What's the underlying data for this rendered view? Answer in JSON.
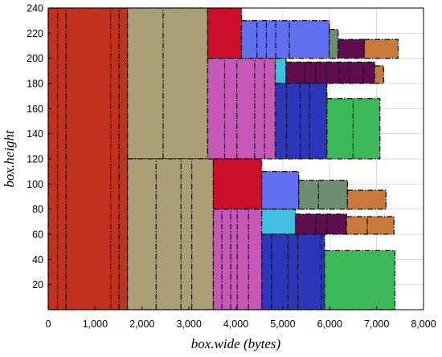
{
  "chart_data": {
    "type": "treemap-packing",
    "xlabel": "box.wide (bytes)",
    "ylabel": "box.height",
    "xlim": [
      0,
      8000
    ],
    "ylim": [
      0,
      240
    ],
    "xticks": [
      0,
      1000,
      2000,
      3000,
      4000,
      5000,
      6000,
      7000,
      8000
    ],
    "xtick_labels": [
      "0",
      "1,000",
      "2,000",
      "3,000",
      "4,000",
      "5,000",
      "6,000",
      "7,000",
      "8,000"
    ],
    "yticks": [
      20,
      40,
      60,
      80,
      100,
      120,
      140,
      160,
      180,
      200,
      220,
      240
    ],
    "ytick_labels": [
      "20",
      "40",
      "60",
      "80",
      "100",
      "120",
      "140",
      "160",
      "180",
      "200",
      "220",
      "240"
    ],
    "grid": true,
    "boxes": [
      {
        "x0": 0,
        "x1": 1690,
        "y0": 0,
        "y1": 240,
        "color": "#c0321e"
      },
      {
        "x0": 1690,
        "x1": 3400,
        "y0": 120,
        "y1": 240,
        "color": "#ac9e74"
      },
      {
        "x0": 1690,
        "x1": 3520,
        "y0": 0,
        "y1": 120,
        "color": "#ac9e74"
      },
      {
        "x0": 3400,
        "x1": 4120,
        "y0": 200,
        "y1": 240,
        "color": "#cc0e2a"
      },
      {
        "x0": 4120,
        "x1": 5990,
        "y0": 200,
        "y1": 230,
        "color": "#6170f0"
      },
      {
        "x0": 5990,
        "x1": 6180,
        "y0": 200,
        "y1": 223,
        "color": "#6e8e72"
      },
      {
        "x0": 6180,
        "x1": 6740,
        "y0": 200,
        "y1": 215,
        "color": "#5e0e4e"
      },
      {
        "x0": 6740,
        "x1": 7460,
        "y0": 200,
        "y1": 215,
        "color": "#c97a3a"
      },
      {
        "x0": 3400,
        "x1": 4840,
        "y0": 120,
        "y1": 200,
        "color": "#c658b8"
      },
      {
        "x0": 4840,
        "x1": 5070,
        "y0": 180,
        "y1": 200,
        "color": "#40c0de"
      },
      {
        "x0": 5070,
        "x1": 6960,
        "y0": 180,
        "y1": 197,
        "color": "#5e0e4e"
      },
      {
        "x0": 6960,
        "x1": 7150,
        "y0": 180,
        "y1": 194,
        "color": "#c97a3a"
      },
      {
        "x0": 4840,
        "x1": 5940,
        "y0": 120,
        "y1": 180,
        "color": "#2c36b8"
      },
      {
        "x0": 5940,
        "x1": 7070,
        "y0": 120,
        "y1": 168,
        "color": "#3cb85a"
      },
      {
        "x0": 3520,
        "x1": 4550,
        "y0": 80,
        "y1": 120,
        "color": "#cc0e2a"
      },
      {
        "x0": 4550,
        "x1": 5340,
        "y0": 80,
        "y1": 110,
        "color": "#6170f0"
      },
      {
        "x0": 5340,
        "x1": 6380,
        "y0": 80,
        "y1": 103,
        "color": "#6e8e72"
      },
      {
        "x0": 6380,
        "x1": 7200,
        "y0": 80,
        "y1": 95,
        "color": "#c97a3a"
      },
      {
        "x0": 3520,
        "x1": 4550,
        "y0": 0,
        "y1": 80,
        "color": "#c658b8"
      },
      {
        "x0": 4550,
        "x1": 5270,
        "y0": 60,
        "y1": 80,
        "color": "#40c0de"
      },
      {
        "x0": 5270,
        "x1": 6360,
        "y0": 60,
        "y1": 76,
        "color": "#5e0e4e"
      },
      {
        "x0": 6360,
        "x1": 7370,
        "y0": 60,
        "y1": 74,
        "color": "#c97a3a"
      },
      {
        "x0": 4550,
        "x1": 5890,
        "y0": 0,
        "y1": 60,
        "color": "#2c36b8"
      },
      {
        "x0": 5890,
        "x1": 7390,
        "y0": 0,
        "y1": 47,
        "color": "#3cb85a"
      }
    ],
    "dividers": [
      {
        "x": 200,
        "y0": 0,
        "y1": 240
      },
      {
        "x": 380,
        "y0": 0,
        "y1": 240
      },
      {
        "x": 1330,
        "y0": 0,
        "y1": 240
      },
      {
        "x": 1510,
        "y0": 0,
        "y1": 240
      },
      {
        "x": 2450,
        "y0": 120,
        "y1": 240
      },
      {
        "x": 2300,
        "y0": 0,
        "y1": 120
      },
      {
        "x": 2830,
        "y0": 0,
        "y1": 120
      },
      {
        "x": 3060,
        "y0": 0,
        "y1": 120
      },
      {
        "x": 4450,
        "y0": 200,
        "y1": 230
      },
      {
        "x": 4650,
        "y0": 200,
        "y1": 230
      },
      {
        "x": 4850,
        "y0": 200,
        "y1": 230
      },
      {
        "x": 5140,
        "y0": 200,
        "y1": 230
      },
      {
        "x": 3760,
        "y0": 120,
        "y1": 200
      },
      {
        "x": 4020,
        "y0": 120,
        "y1": 200
      },
      {
        "x": 4400,
        "y0": 120,
        "y1": 200
      },
      {
        "x": 4610,
        "y0": 120,
        "y1": 200
      },
      {
        "x": 5470,
        "y0": 180,
        "y1": 197
      },
      {
        "x": 5700,
        "y0": 180,
        "y1": 197
      },
      {
        "x": 5930,
        "y0": 180,
        "y1": 197
      },
      {
        "x": 6200,
        "y0": 180,
        "y1": 197
      },
      {
        "x": 6420,
        "y0": 180,
        "y1": 197
      },
      {
        "x": 6720,
        "y0": 180,
        "y1": 197
      },
      {
        "x": 5080,
        "y0": 120,
        "y1": 180
      },
      {
        "x": 5370,
        "y0": 120,
        "y1": 180
      },
      {
        "x": 5570,
        "y0": 120,
        "y1": 180
      },
      {
        "x": 6500,
        "y0": 120,
        "y1": 168
      },
      {
        "x": 3700,
        "y0": 0,
        "y1": 80
      },
      {
        "x": 3890,
        "y0": 0,
        "y1": 80
      },
      {
        "x": 4030,
        "y0": 0,
        "y1": 80
      },
      {
        "x": 4270,
        "y0": 0,
        "y1": 80
      },
      {
        "x": 5700,
        "y0": 60,
        "y1": 76
      },
      {
        "x": 5940,
        "y0": 60,
        "y1": 76
      },
      {
        "x": 6800,
        "y0": 60,
        "y1": 74
      },
      {
        "x": 4760,
        "y0": 0,
        "y1": 60
      },
      {
        "x": 5110,
        "y0": 0,
        "y1": 60
      },
      {
        "x": 5320,
        "y0": 0,
        "y1": 60
      },
      {
        "x": 5820,
        "y0": 0,
        "y1": 60
      },
      {
        "x": 5760,
        "y0": 80,
        "y1": 103
      }
    ]
  }
}
